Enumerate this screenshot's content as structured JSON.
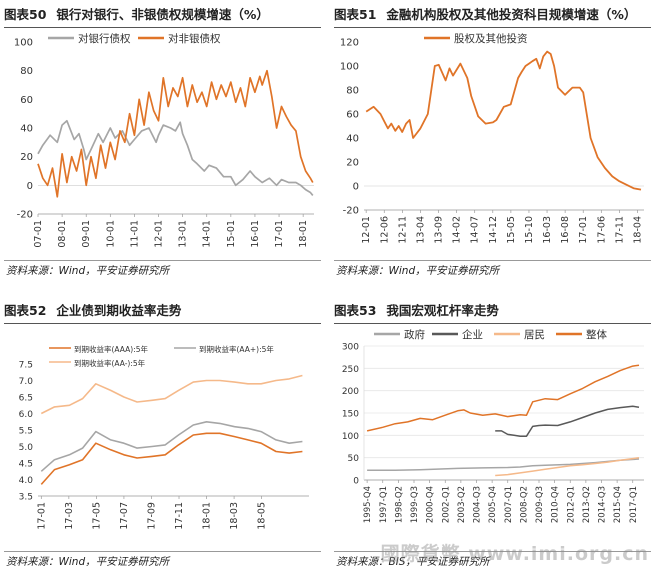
{
  "watermark": "國際貨幣 www.imi.org.cn",
  "charts": [
    {
      "id": "c50",
      "number": "图表50",
      "title": "银行对银行、非银债权规模增速（%）",
      "source": "资料来源：Wind，平安证券研究所",
      "chart_data": {
        "type": "line",
        "x_ticks": [
          "07-01",
          "08-01",
          "09-01",
          "10-01",
          "11-01",
          "12-01",
          "13-01",
          "14-01",
          "15-01",
          "16-01",
          "17-01",
          "18-01"
        ],
        "ylim": [
          -20,
          100
        ],
        "yticks": [
          -20,
          0,
          20,
          40,
          60,
          80,
          100
        ],
        "legend_position": "top-left",
        "series": [
          {
            "name": "对银行债权",
            "color": "#a6a6a6",
            "x": [
              2007.0,
              2007.2,
              2007.5,
              2007.8,
              2008.0,
              2008.2,
              2008.5,
              2008.7,
              2008.9,
              2009.0,
              2009.2,
              2009.5,
              2009.7,
              2010.0,
              2010.2,
              2010.5,
              2010.8,
              2011.0,
              2011.3,
              2011.6,
              2011.9,
              2012.0,
              2012.2,
              2012.5,
              2012.7,
              2012.9,
              2013.0,
              2013.2,
              2013.4,
              2013.6,
              2013.9,
              2014.1,
              2014.4,
              2014.7,
              2015.0,
              2015.2,
              2015.5,
              2015.8,
              2016.0,
              2016.3,
              2016.6,
              2016.9,
              2017.1,
              2017.4,
              2017.7,
              2017.9,
              2018.1,
              2018.3,
              2018.4
            ],
            "y": [
              22,
              28,
              35,
              30,
              42,
              45,
              32,
              36,
              25,
              18,
              25,
              36,
              30,
              40,
              33,
              38,
              28,
              32,
              38,
              40,
              30,
              35,
              42,
              40,
              38,
              44,
              36,
              28,
              18,
              15,
              10,
              14,
              12,
              6,
              6,
              0,
              4,
              10,
              6,
              2,
              5,
              0,
              4,
              2,
              2,
              0,
              -3,
              -5,
              -7
            ]
          },
          {
            "name": "对非银债权",
            "color": "#e07428",
            "x": [
              2007.0,
              2007.2,
              2007.4,
              2007.6,
              2007.8,
              2008.0,
              2008.2,
              2008.4,
              2008.6,
              2008.8,
              2009.0,
              2009.2,
              2009.4,
              2009.6,
              2009.8,
              2010.0,
              2010.2,
              2010.4,
              2010.6,
              2010.8,
              2011.0,
              2011.2,
              2011.4,
              2011.6,
              2011.8,
              2012.0,
              2012.2,
              2012.4,
              2012.6,
              2012.8,
              2013.0,
              2013.2,
              2013.4,
              2013.6,
              2013.8,
              2014.0,
              2014.2,
              2014.4,
              2014.6,
              2014.8,
              2015.0,
              2015.2,
              2015.4,
              2015.6,
              2015.8,
              2016.0,
              2016.2,
              2016.3,
              2016.5,
              2016.7,
              2016.9,
              2017.1,
              2017.3,
              2017.5,
              2017.7,
              2017.9,
              2018.1,
              2018.3,
              2018.4
            ],
            "y": [
              15,
              5,
              0,
              12,
              -8,
              22,
              2,
              20,
              10,
              25,
              0,
              20,
              5,
              28,
              12,
              30,
              18,
              38,
              30,
              50,
              35,
              60,
              42,
              65,
              52,
              45,
              75,
              55,
              68,
              62,
              75,
              55,
              70,
              58,
              65,
              55,
              72,
              60,
              70,
              62,
              72,
              58,
              68,
              55,
              75,
              65,
              76,
              70,
              80,
              62,
              40,
              55,
              48,
              42,
              38,
              20,
              10,
              5,
              2
            ]
          }
        ]
      }
    },
    {
      "id": "c51",
      "number": "图表51",
      "title": "金融机构股权及其他投资科目规模增速（%）",
      "source": "资料来源：Wind，平安证券研究所",
      "chart_data": {
        "type": "line",
        "x_ticks": [
          "12-01",
          "12-06",
          "12-11",
          "13-04",
          "13-09",
          "14-02",
          "14-07",
          "14-12",
          "15-05",
          "15-10",
          "16-03",
          "16-08",
          "17-01",
          "17-06",
          "17-11",
          "18-04"
        ],
        "ylim": [
          -20,
          120
        ],
        "yticks": [
          -20,
          0,
          20,
          40,
          60,
          80,
          100,
          120
        ],
        "legend_position": "top-left",
        "series": [
          {
            "name": "股权及其他投资",
            "color": "#e07428",
            "x": [
              2012.0,
              2012.17,
              2012.33,
              2012.5,
              2012.58,
              2012.67,
              2012.75,
              2012.83,
              2012.92,
              2013.0,
              2013.08,
              2013.25,
              2013.42,
              2013.5,
              2013.58,
              2013.67,
              2013.83,
              2013.92,
              2014.0,
              2014.17,
              2014.33,
              2014.42,
              2014.58,
              2014.75,
              2014.92,
              2015.0,
              2015.17,
              2015.33,
              2015.5,
              2015.58,
              2015.67,
              2015.75,
              2015.83,
              2015.92,
              2016.0,
              2016.08,
              2016.17,
              2016.25,
              2016.33,
              2016.42,
              2016.58,
              2016.75,
              2016.92,
              2017.0,
              2017.17,
              2017.33,
              2017.5,
              2017.67,
              2017.83,
              2018.0,
              2018.17,
              2018.33
            ],
            "y": [
              62,
              66,
              60,
              48,
              52,
              46,
              50,
              45,
              52,
              55,
              40,
              48,
              60,
              80,
              100,
              101,
              88,
              98,
              92,
              102,
              90,
              75,
              58,
              52,
              53,
              55,
              66,
              68,
              90,
              95,
              100,
              102,
              104,
              106,
              98,
              108,
              112,
              110,
              100,
              82,
              76,
              82,
              82,
              78,
              40,
              24,
              15,
              8,
              4,
              1,
              -2,
              -3
            ]
          }
        ]
      }
    },
    {
      "id": "c52",
      "number": "图表52",
      "title": "企业债到期收益率走势",
      "source": "资料来源：Wind，平安证券研究所",
      "chart_data": {
        "type": "line",
        "x_ticks": [
          "17-01",
          "17-03",
          "17-05",
          "17-07",
          "17-09",
          "17-11",
          "18-01",
          "18-03",
          "18-05"
        ],
        "ylim": [
          3.5,
          7.5
        ],
        "yticks": [
          3.5,
          4.0,
          4.5,
          5.0,
          5.5,
          6.0,
          6.5,
          7.0,
          7.5
        ],
        "legend_position": "top",
        "series": [
          {
            "name": "到期收益率(AAA):5年",
            "color": "#e07428",
            "x": [
              2017.0,
              2017.08,
              2017.17,
              2017.25,
              2017.33,
              2017.42,
              2017.5,
              2017.58,
              2017.67,
              2017.75,
              2017.83,
              2017.92,
              2018.0,
              2018.08,
              2018.17,
              2018.25,
              2018.33,
              2018.42,
              2018.5,
              2018.58
            ],
            "y": [
              3.85,
              4.3,
              4.45,
              4.6,
              5.1,
              4.9,
              4.75,
              4.65,
              4.7,
              4.75,
              5.05,
              5.35,
              5.4,
              5.4,
              5.3,
              5.2,
              5.1,
              4.85,
              4.8,
              4.85
            ]
          },
          {
            "name": "到期收益率(AA+):5年",
            "color": "#a6a6a6",
            "x": [
              2017.0,
              2017.08,
              2017.17,
              2017.25,
              2017.33,
              2017.42,
              2017.5,
              2017.58,
              2017.67,
              2017.75,
              2017.83,
              2017.92,
              2018.0,
              2018.08,
              2018.17,
              2018.25,
              2018.33,
              2018.42,
              2018.5,
              2018.58
            ],
            "y": [
              4.25,
              4.6,
              4.75,
              4.95,
              5.45,
              5.2,
              5.1,
              4.95,
              5.0,
              5.05,
              5.35,
              5.65,
              5.75,
              5.7,
              5.6,
              5.55,
              5.45,
              5.2,
              5.1,
              5.15
            ]
          },
          {
            "name": "到期收益率(AA-):5年",
            "color": "#f5b98a",
            "x": [
              2017.0,
              2017.08,
              2017.17,
              2017.25,
              2017.33,
              2017.42,
              2017.5,
              2017.58,
              2017.67,
              2017.75,
              2017.83,
              2017.92,
              2018.0,
              2018.08,
              2018.17,
              2018.25,
              2018.33,
              2018.42,
              2018.5,
              2018.58
            ],
            "y": [
              6.0,
              6.2,
              6.25,
              6.45,
              6.9,
              6.7,
              6.5,
              6.35,
              6.4,
              6.45,
              6.7,
              6.95,
              7.0,
              7.0,
              6.95,
              6.9,
              6.9,
              7.0,
              7.05,
              7.15
            ]
          }
        ]
      }
    },
    {
      "id": "c53",
      "number": "图表53",
      "title": "我国宏观杠杆率走势",
      "source": "资料来源：BIS，平安证券研究所",
      "chart_data": {
        "type": "line",
        "x_ticks": [
          "1995-Q4",
          "1997-Q1",
          "1998-Q2",
          "1999-Q3",
          "2000-Q4",
          "2002-Q1",
          "2003-Q2",
          "2004-Q3",
          "2005-Q4",
          "2007-Q1",
          "2008-Q2",
          "2009-Q3",
          "2010-Q4",
          "2012-Q1",
          "2013-Q2",
          "2014-Q3",
          "2015-Q4",
          "2017-Q1"
        ],
        "ylim": [
          0,
          300
        ],
        "yticks": [
          0,
          50,
          100,
          150,
          200,
          250,
          300
        ],
        "legend_position": "top",
        "series": [
          {
            "name": "政府",
            "color": "#a6a6a6",
            "x": [
              1995.75,
              1998,
              2000,
              2003,
              2005,
              2007,
              2008,
              2009,
              2010,
              2012,
              2014,
              2016,
              2017.5
            ],
            "y": [
              22,
              22,
              23,
              26,
              27,
              28,
              29,
              32,
              33,
              35,
              39,
              44,
              47
            ]
          },
          {
            "name": "企业",
            "color": "#595959",
            "x": [
              2006.0,
              2006.5,
              2007,
              2007.5,
              2008,
              2008.5,
              2009,
              2009.5,
              2010,
              2011,
              2012,
              2013,
              2014,
              2015,
              2016,
              2017,
              2017.5
            ],
            "y": [
              110,
              110,
              102,
              100,
              98,
              98,
              120,
              122,
              123,
              122,
              130,
              140,
              150,
              158,
              162,
              165,
              163
            ]
          },
          {
            "name": "居民",
            "color": "#f5b98a",
            "x": [
              2006.0,
              2007,
              2008,
              2009,
              2010,
              2011,
              2012,
              2013,
              2014,
              2015,
              2016,
              2017,
              2017.5
            ],
            "y": [
              10,
              12,
              16,
              20,
              24,
              28,
              32,
              34,
              37,
              40,
              44,
              48,
              50
            ]
          },
          {
            "name": "整体",
            "color": "#e07428",
            "x": [
              1995.75,
              1997,
              1998,
              1999,
              2000,
              2001,
              2002,
              2003,
              2003.5,
              2004,
              2005,
              2006,
              2007,
              2008,
              2008.5,
              2009,
              2010,
              2011,
              2012,
              2013,
              2014,
              2015,
              2016,
              2017,
              2017.5
            ],
            "y": [
              110,
              118,
              126,
              130,
              138,
              135,
              145,
              155,
              157,
              150,
              145,
              148,
              142,
              146,
              145,
              175,
              182,
              180,
              193,
              205,
              220,
              232,
              245,
              255,
              257
            ]
          }
        ]
      }
    }
  ]
}
